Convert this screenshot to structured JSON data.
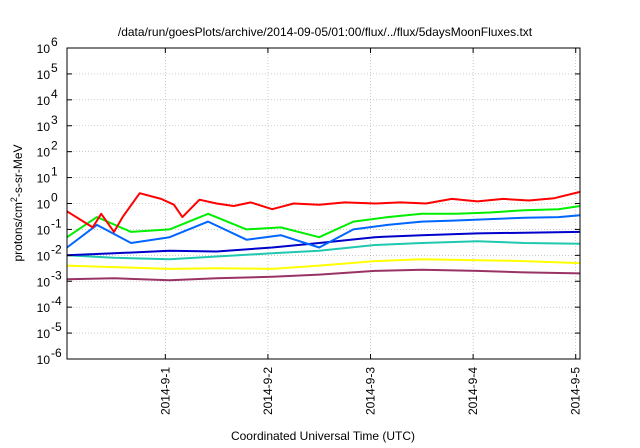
{
  "chart_data": {
    "type": "line",
    "title": "/data/run/goesPlots/archive/2014-09-05/01:00/flux/../flux/5daysMoonFluxes.txt",
    "xlabel": "Coordinated Universal Time (UTC)",
    "ylabel": "protons/cm²-s-sr-MeV",
    "yscale": "log",
    "ylim": [
      1e-06,
      1000000.0
    ],
    "xlim": [
      "2014-08-31T01:00",
      "2014-09-05T01:00"
    ],
    "grid": true,
    "x_ticks": [
      "2014-9-1",
      "2014-9-2",
      "2014-9-3",
      "2014-9-4",
      "2014-9-5"
    ],
    "y_ticks": [
      {
        "value": 1e-06,
        "label": "10",
        "exp": "-6"
      },
      {
        "value": 1e-05,
        "label": "10",
        "exp": "-5"
      },
      {
        "value": 0.0001,
        "label": "10",
        "exp": "-4"
      },
      {
        "value": 0.001,
        "label": "10",
        "exp": "-3"
      },
      {
        "value": 0.01,
        "label": "10",
        "exp": "-2"
      },
      {
        "value": 0.1,
        "label": "10",
        "exp": "-1"
      },
      {
        "value": 1.0,
        "label": "10",
        "exp": "0"
      },
      {
        "value": 10.0,
        "label": "10",
        "exp": "1"
      },
      {
        "value": 100.0,
        "label": "10",
        "exp": "2"
      },
      {
        "value": 1000.0,
        "label": "10",
        "exp": "3"
      },
      {
        "value": 10000.0,
        "label": "10",
        "exp": "4"
      },
      {
        "value": 100000.0,
        "label": "10",
        "exp": "5"
      },
      {
        "value": 1000000.0,
        "label": "10",
        "exp": "6"
      }
    ],
    "series": [
      {
        "color": "#ff0000",
        "x": [
          "2014-08-31T01:00",
          "2014-08-31T07:00",
          "2014-08-31T09:00",
          "2014-08-31T12:00",
          "2014-08-31T14:00",
          "2014-08-31T18:00",
          "2014-08-31T23:00",
          "2014-09-01T02:00",
          "2014-09-01T04:00",
          "2014-09-01T08:00",
          "2014-09-01T12:00",
          "2014-09-01T16:00",
          "2014-09-01T20:00",
          "2014-09-02T01:00",
          "2014-09-02T06:00",
          "2014-09-02T12:00",
          "2014-09-02T18:00",
          "2014-09-03T01:00",
          "2014-09-03T07:00",
          "2014-09-03T13:00",
          "2014-09-03T19:00",
          "2014-09-04T01:00",
          "2014-09-04T07:00",
          "2014-09-04T13:00",
          "2014-09-04T19:00",
          "2014-09-05T01:00"
        ],
        "values": [
          0.5,
          0.12,
          0.4,
          0.08,
          0.3,
          2.5,
          1.5,
          0.9,
          0.3,
          1.4,
          1.0,
          0.8,
          1.1,
          0.6,
          1.0,
          0.9,
          1.1,
          1.0,
          1.1,
          1.0,
          1.5,
          1.2,
          1.5,
          1.3,
          1.6,
          2.8
        ]
      },
      {
        "color": "#00ee00",
        "x": [
          "2014-08-31T01:00",
          "2014-08-31T08:00",
          "2014-08-31T16:00",
          "2014-09-01T01:00",
          "2014-09-01T10:00",
          "2014-09-01T19:00",
          "2014-09-02T03:00",
          "2014-09-02T12:00",
          "2014-09-02T20:00",
          "2014-09-03T04:00",
          "2014-09-03T12:00",
          "2014-09-03T20:00",
          "2014-09-04T04:00",
          "2014-09-04T12:00",
          "2014-09-04T20:00",
          "2014-09-05T01:00"
        ],
        "values": [
          0.05,
          0.3,
          0.08,
          0.1,
          0.4,
          0.1,
          0.12,
          0.05,
          0.2,
          0.3,
          0.4,
          0.4,
          0.45,
          0.55,
          0.6,
          0.8
        ]
      },
      {
        "color": "#0066ff",
        "x": [
          "2014-08-31T01:00",
          "2014-08-31T08:00",
          "2014-08-31T16:00",
          "2014-09-01T01:00",
          "2014-09-01T10:00",
          "2014-09-01T19:00",
          "2014-09-02T03:00",
          "2014-09-02T12:00",
          "2014-09-02T20:00",
          "2014-09-03T04:00",
          "2014-09-03T12:00",
          "2014-09-03T20:00",
          "2014-09-04T04:00",
          "2014-09-04T12:00",
          "2014-09-04T20:00",
          "2014-09-05T01:00"
        ],
        "values": [
          0.02,
          0.15,
          0.03,
          0.05,
          0.2,
          0.04,
          0.06,
          0.02,
          0.1,
          0.15,
          0.2,
          0.22,
          0.25,
          0.28,
          0.3,
          0.35
        ]
      },
      {
        "color": "#0000cc",
        "x": [
          "2014-08-31T01:00",
          "2014-08-31T12:00",
          "2014-09-01T01:00",
          "2014-09-01T12:00",
          "2014-09-02T01:00",
          "2014-09-02T12:00",
          "2014-09-03T01:00",
          "2014-09-03T12:00",
          "2014-09-04T01:00",
          "2014-09-04T12:00",
          "2014-09-05T01:00"
        ],
        "values": [
          0.01,
          0.012,
          0.015,
          0.014,
          0.02,
          0.03,
          0.05,
          0.06,
          0.07,
          0.075,
          0.08
        ]
      },
      {
        "color": "#20c8b0",
        "x": [
          "2014-08-31T01:00",
          "2014-08-31T12:00",
          "2014-09-01T01:00",
          "2014-09-01T12:00",
          "2014-09-02T01:00",
          "2014-09-02T12:00",
          "2014-09-03T01:00",
          "2014-09-03T12:00",
          "2014-09-04T01:00",
          "2014-09-04T12:00",
          "2014-09-05T01:00"
        ],
        "values": [
          0.01,
          0.008,
          0.007,
          0.009,
          0.012,
          0.015,
          0.025,
          0.03,
          0.035,
          0.03,
          0.028
        ]
      },
      {
        "color": "#ffff00",
        "x": [
          "2014-08-31T01:00",
          "2014-08-31T12:00",
          "2014-09-01T01:00",
          "2014-09-01T12:00",
          "2014-09-02T01:00",
          "2014-09-02T12:00",
          "2014-09-03T01:00",
          "2014-09-03T12:00",
          "2014-09-04T01:00",
          "2014-09-04T12:00",
          "2014-09-05T01:00"
        ],
        "values": [
          0.004,
          0.0035,
          0.003,
          0.0032,
          0.003,
          0.004,
          0.006,
          0.007,
          0.0065,
          0.006,
          0.005
        ]
      },
      {
        "color": "#993366",
        "x": [
          "2014-08-31T01:00",
          "2014-08-31T12:00",
          "2014-09-01T01:00",
          "2014-09-01T12:00",
          "2014-09-02T01:00",
          "2014-09-02T12:00",
          "2014-09-03T01:00",
          "2014-09-03T12:00",
          "2014-09-04T01:00",
          "2014-09-04T12:00",
          "2014-09-05T01:00"
        ],
        "values": [
          0.0012,
          0.0013,
          0.0011,
          0.0013,
          0.0015,
          0.0018,
          0.0025,
          0.0028,
          0.0025,
          0.0022,
          0.002
        ]
      }
    ]
  }
}
